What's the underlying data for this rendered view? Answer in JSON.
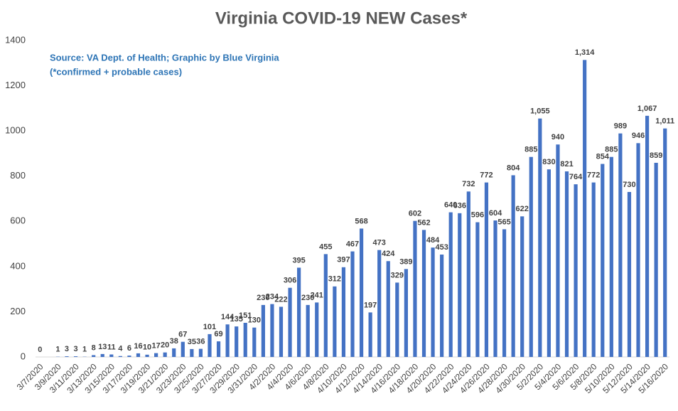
{
  "chart_data": {
    "type": "bar",
    "title": "Virginia COVID-19 NEW Cases*",
    "annotations": [
      "Source: VA Dept. of Health; Graphic by Blue Virginia",
      "(*confirmed + probable cases)"
    ],
    "categories": [
      "3/7/2020",
      null,
      "3/9/2020",
      null,
      "3/11/2020",
      null,
      "3/13/2020",
      null,
      "3/15/2020",
      null,
      "3/17/2020",
      null,
      "3/19/2020",
      null,
      "3/21/2020",
      null,
      "3/23/2020",
      null,
      "3/25/2020",
      null,
      "3/27/2020",
      null,
      "3/29/2020",
      null,
      "3/31/2020",
      null,
      "4/2/2020",
      null,
      "4/4/2020",
      null,
      "4/6/2020",
      null,
      "4/8/2020",
      null,
      "4/10/2020",
      null,
      "4/12/2020",
      null,
      "4/14/2020",
      null,
      "4/16/2020",
      null,
      "4/18/2020",
      null,
      "4/20/2020",
      null,
      "4/22/2020",
      null,
      "4/24/2020",
      null,
      "4/26/2020",
      null,
      "4/28/2020",
      null,
      "4/30/2020",
      null,
      "5/2/2020",
      null,
      "5/4/2020",
      null,
      "5/6/2020",
      null,
      "5/8/2020",
      null,
      "5/10/2020",
      null,
      "5/12/2020",
      null,
      "5/14/2020",
      null,
      "5/16/2020"
    ],
    "values": [
      0,
      null,
      1,
      3,
      3,
      1,
      8,
      13,
      11,
      4,
      6,
      16,
      10,
      17,
      20,
      38,
      67,
      35,
      36,
      101,
      69,
      144,
      135,
      151,
      130,
      230,
      234,
      222,
      306,
      395,
      230,
      241,
      455,
      312,
      397,
      467,
      568,
      197,
      473,
      424,
      329,
      389,
      602,
      562,
      484,
      453,
      640,
      636,
      732,
      596,
      772,
      604,
      565,
      804,
      622,
      885,
      1055,
      830,
      940,
      821,
      764,
      1314,
      772,
      854,
      885,
      989,
      730,
      946,
      1067,
      859,
      1011
    ],
    "value_labels": [
      "0",
      null,
      "1",
      "3",
      "3",
      "1",
      "8",
      "13",
      "11",
      "4",
      "6",
      "16",
      "10",
      "17",
      "20",
      "38",
      "67",
      "35",
      "36",
      "101",
      "69",
      "144",
      "135",
      "151",
      "130",
      "230",
      "234",
      "222",
      "306",
      "395",
      "230",
      "241",
      "455",
      "312",
      "397",
      "467",
      "568",
      "197",
      "473",
      "424",
      "329",
      "389",
      "602",
      "562",
      "484",
      "453",
      "640",
      "636",
      "732",
      "596",
      "772",
      "604",
      "565",
      "804",
      "622",
      "885",
      "1,055",
      "830",
      "940",
      "821",
      "764",
      "1,314",
      "772",
      "854",
      "885",
      "989",
      "730",
      "946",
      "1,067",
      "859",
      "1,011"
    ],
    "color": "#4472c4",
    "ylim": [
      0,
      1400
    ],
    "yticks": [
      0,
      200,
      400,
      600,
      800,
      1000,
      1200,
      1400
    ],
    "grid": false
  }
}
